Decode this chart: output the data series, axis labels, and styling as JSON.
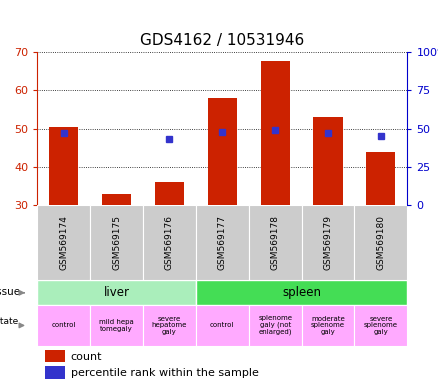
{
  "title": "GDS4162 / 10531946",
  "samples": [
    "GSM569174",
    "GSM569175",
    "GSM569176",
    "GSM569177",
    "GSM569178",
    "GSM569179",
    "GSM569180"
  ],
  "counts": [
    50.5,
    33.0,
    36.0,
    58.0,
    67.5,
    53.0,
    44.0
  ],
  "percentile_ranks": [
    47,
    null,
    43,
    48,
    49,
    47,
    45
  ],
  "ylim": [
    30,
    70
  ],
  "y2lim": [
    0,
    100
  ],
  "yticks": [
    30,
    40,
    50,
    60,
    70
  ],
  "y2ticks": [
    0,
    25,
    50,
    75,
    100
  ],
  "bar_color": "#cc2200",
  "dot_color": "#3333cc",
  "bar_width": 0.55,
  "liver_color": "#aaeebb",
  "spleen_color": "#44dd55",
  "disease_color": "#ffaaff",
  "sample_box_color": "#cccccc",
  "disease_label_fontsize": 5.0,
  "tissue_fontsize": 8.5,
  "sample_fontsize": 6.5,
  "tick_label_color_left": "#cc2200",
  "tick_label_color_right": "#0000cc",
  "title_fontsize": 11,
  "legend_fontsize": 8,
  "tissue_labels": [
    "liver",
    "spleen"
  ],
  "disease_labels": [
    "control",
    "mild hepa\ntomegaly",
    "severe\nhepatome\ngaly",
    "control",
    "splenome\ngaly (not\nenlarged)",
    "moderate\nsplenome\ngaly",
    "severe\nsplenome\ngaly"
  ]
}
